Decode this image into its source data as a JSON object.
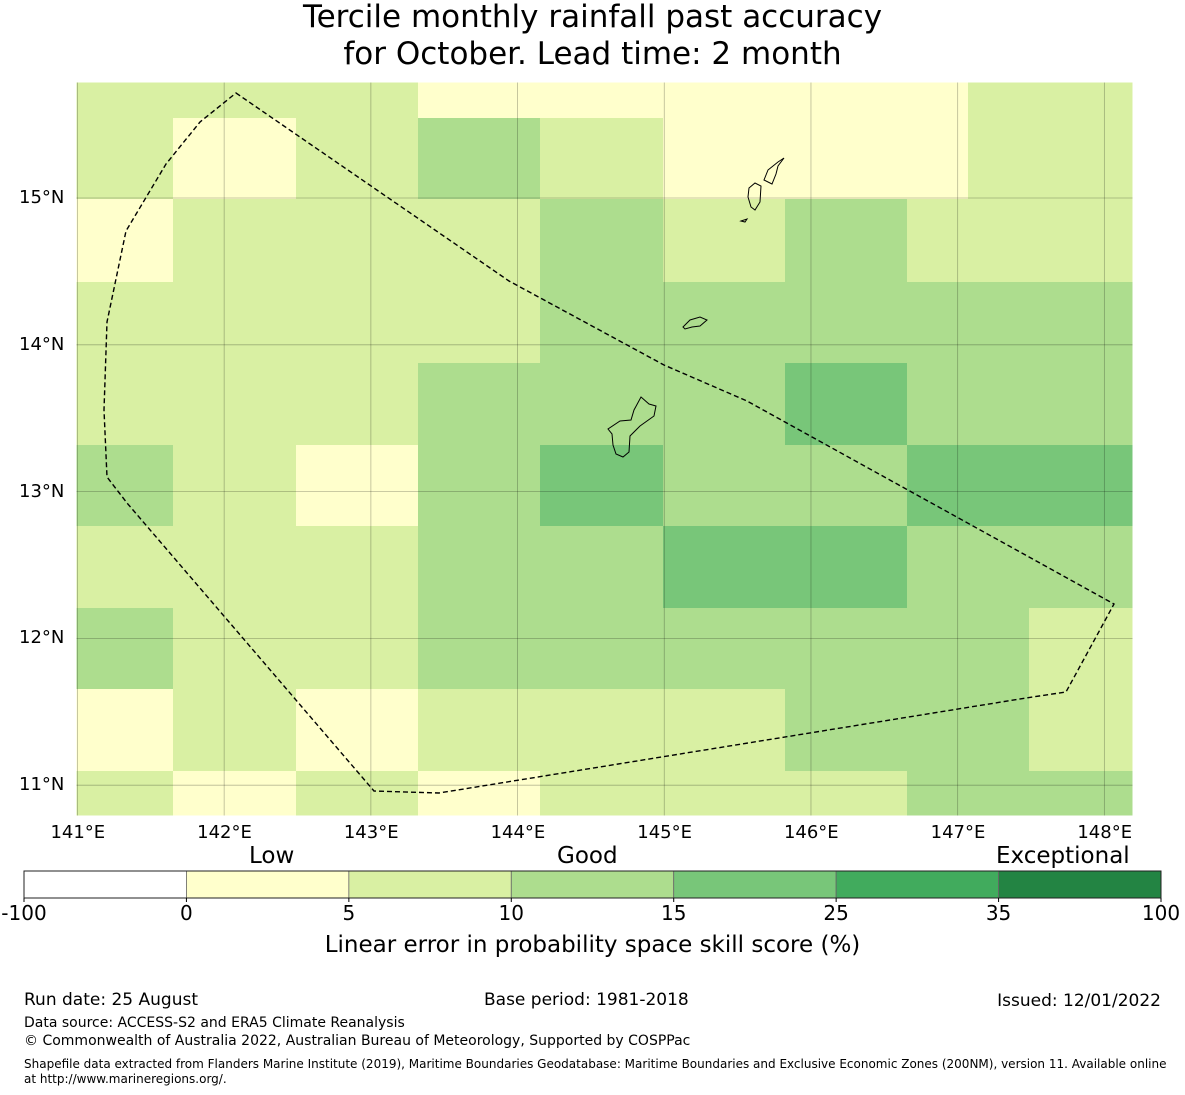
{
  "title": {
    "line1": "Tercile monthly rainfall past accuracy",
    "line2": "for October. Lead time: 2 month"
  },
  "map": {
    "lon_ticks": [
      "141°E",
      "142°E",
      "143°E",
      "144°E",
      "145°E",
      "146°E",
      "147°E",
      "148°E"
    ],
    "lat_ticks": [
      "15°N",
      "14°N",
      "13°N",
      "12°N",
      "11°N"
    ],
    "lon_values": [
      141,
      142,
      143,
      144,
      145,
      146,
      147,
      148
    ],
    "lat_values": [
      15,
      14,
      13,
      12,
      11
    ],
    "grid_classes": [
      [
        2,
        2,
        2,
        1,
        1,
        1,
        1,
        1,
        2,
        2,
        2
      ],
      [
        2,
        1,
        2,
        3,
        2,
        1,
        1,
        1,
        2,
        2,
        2
      ],
      [
        1,
        2,
        2,
        2,
        3,
        2,
        3,
        2,
        2,
        2,
        2
      ],
      [
        2,
        2,
        2,
        2,
        3,
        3,
        3,
        3,
        3,
        3,
        3
      ],
      [
        2,
        2,
        2,
        3,
        3,
        3,
        4,
        3,
        3,
        3,
        3
      ],
      [
        3,
        2,
        1,
        3,
        4,
        3,
        3,
        4,
        4,
        4,
        4
      ],
      [
        2,
        2,
        2,
        3,
        3,
        4,
        4,
        3,
        3,
        3,
        3
      ],
      [
        3,
        2,
        2,
        3,
        3,
        3,
        3,
        3,
        3,
        2,
        2
      ],
      [
        1,
        2,
        1,
        2,
        2,
        2,
        3,
        3,
        3,
        2,
        2
      ],
      [
        2,
        1,
        2,
        1,
        2,
        2,
        2,
        3,
        3,
        3,
        3
      ]
    ]
  },
  "colorbar": {
    "category_labels": [
      "Low",
      "Good",
      "Exceptional"
    ],
    "tick_labels": [
      "-100",
      "0",
      "5",
      "10",
      "15",
      "25",
      "35",
      "100"
    ],
    "colors": [
      "#ffffff",
      "#ffffcc",
      "#d9f0a3",
      "#addd8e",
      "#78c679",
      "#41ab5d",
      "#238443"
    ],
    "label": "Linear error in probability space skill score (%)"
  },
  "footer": {
    "run_date": "Run date: 25 August",
    "base_period": "Base period: 1981-2018",
    "issued": "Issued: 12/01/2022",
    "data_source": "Data source: ACCESS-S2 and ERA5 Climate Reanalysis",
    "copyright": "© Commonwealth of Australia 2022, Australian Bureau of Meteorology, Supported by COSPPac",
    "shapefile_line1": "Shapefile data extracted from Flanders Marine Institute (2019), Maritime Boundaries Geodatabase: Maritime Boundaries and Exclusive Economic Zones (200NM), version 11. Available online",
    "shapefile_line2": "at http://www.marineregions.org/."
  }
}
